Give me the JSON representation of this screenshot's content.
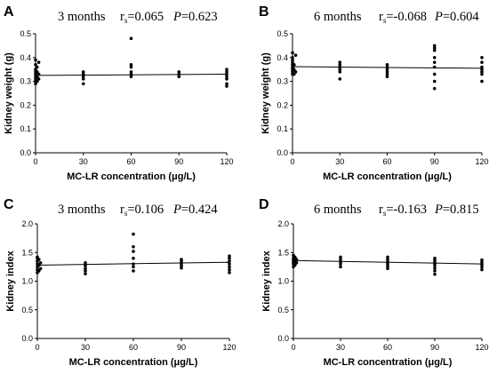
{
  "chart_data": [
    {
      "type": "scatter",
      "panel": "A",
      "title": "3 months",
      "rs_label": "r",
      "rs_sub": "s",
      "rs_value": "=0.065",
      "p_label": "P",
      "p_value": "=0.623",
      "xlabel": "MC-LR concentration (μg/L)",
      "ylabel": "Kidney weight (g)",
      "xticks": [
        0,
        30,
        60,
        90,
        120
      ],
      "yticks": [
        "0.0",
        "0.1",
        "0.2",
        "0.3",
        "0.4",
        "0.5"
      ],
      "xlim": [
        0,
        120
      ],
      "ylim": [
        0,
        0.5
      ],
      "points": [
        [
          0,
          0.29
        ],
        [
          0,
          0.3
        ],
        [
          0,
          0.31
        ],
        [
          0,
          0.32
        ],
        [
          0,
          0.33
        ],
        [
          0,
          0.34
        ],
        [
          0,
          0.35
        ],
        [
          0,
          0.37
        ],
        [
          0,
          0.39
        ],
        [
          1,
          0.3
        ],
        [
          1,
          0.32
        ],
        [
          1,
          0.34
        ],
        [
          1,
          0.36
        ],
        [
          2,
          0.31
        ],
        [
          2,
          0.33
        ],
        [
          2,
          0.38
        ],
        [
          30,
          0.29
        ],
        [
          30,
          0.31
        ],
        [
          30,
          0.32
        ],
        [
          30,
          0.33
        ],
        [
          30,
          0.34
        ],
        [
          60,
          0.32
        ],
        [
          60,
          0.33
        ],
        [
          60,
          0.34
        ],
        [
          60,
          0.36
        ],
        [
          60,
          0.37
        ],
        [
          60,
          0.48
        ],
        [
          90,
          0.32
        ],
        [
          90,
          0.33
        ],
        [
          90,
          0.34
        ],
        [
          120,
          0.28
        ],
        [
          120,
          0.29
        ],
        [
          120,
          0.31
        ],
        [
          120,
          0.32
        ],
        [
          120,
          0.33
        ],
        [
          120,
          0.34
        ],
        [
          120,
          0.35
        ]
      ],
      "trend": [
        [
          0,
          0.325
        ],
        [
          120,
          0.33
        ]
      ]
    },
    {
      "type": "scatter",
      "panel": "B",
      "title": "6 months",
      "rs_label": "r",
      "rs_sub": "s",
      "rs_value": "=-0.068",
      "p_label": "P",
      "p_value": "=0.604",
      "xlabel": "MC-LR concentration (μg/L)",
      "ylabel": "Kidney weight (g)",
      "xticks": [
        0,
        30,
        60,
        90,
        120
      ],
      "yticks": [
        "0.0",
        "0.1",
        "0.2",
        "0.3",
        "0.4",
        "0.5"
      ],
      "xlim": [
        0,
        120
      ],
      "ylim": [
        0,
        0.5
      ],
      "points": [
        [
          0,
          0.33
        ],
        [
          0,
          0.34
        ],
        [
          0,
          0.35
        ],
        [
          0,
          0.36
        ],
        [
          0,
          0.37
        ],
        [
          0,
          0.38
        ],
        [
          0,
          0.39
        ],
        [
          0,
          0.4
        ],
        [
          0,
          0.42
        ],
        [
          1,
          0.33
        ],
        [
          1,
          0.35
        ],
        [
          1,
          0.37
        ],
        [
          2,
          0.34
        ],
        [
          2,
          0.41
        ],
        [
          30,
          0.31
        ],
        [
          30,
          0.34
        ],
        [
          30,
          0.35
        ],
        [
          30,
          0.36
        ],
        [
          30,
          0.37
        ],
        [
          30,
          0.38
        ],
        [
          60,
          0.32
        ],
        [
          60,
          0.33
        ],
        [
          60,
          0.34
        ],
        [
          60,
          0.35
        ],
        [
          60,
          0.36
        ],
        [
          60,
          0.37
        ],
        [
          90,
          0.27
        ],
        [
          90,
          0.3
        ],
        [
          90,
          0.33
        ],
        [
          90,
          0.36
        ],
        [
          90,
          0.38
        ],
        [
          90,
          0.4
        ],
        [
          90,
          0.43
        ],
        [
          90,
          0.44
        ],
        [
          90,
          0.45
        ],
        [
          120,
          0.3
        ],
        [
          120,
          0.33
        ],
        [
          120,
          0.34
        ],
        [
          120,
          0.35
        ],
        [
          120,
          0.36
        ],
        [
          120,
          0.38
        ],
        [
          120,
          0.4
        ]
      ],
      "trend": [
        [
          0,
          0.362
        ],
        [
          120,
          0.355
        ]
      ]
    },
    {
      "type": "scatter",
      "panel": "C",
      "title": "3 months",
      "rs_label": "r",
      "rs_sub": "s",
      "rs_value": "=0.106",
      "p_label": "P",
      "p_value": "=0.424",
      "xlabel": "MC-LR concentration (μg/L)",
      "ylabel": "Kidney index",
      "xticks": [
        0,
        30,
        60,
        90,
        120
      ],
      "yticks": [
        "0.0",
        "0.5",
        "1.0",
        "1.5",
        "2.0"
      ],
      "xlim": [
        0,
        120
      ],
      "ylim": [
        0,
        2.0
      ],
      "points": [
        [
          0,
          1.15
        ],
        [
          0,
          1.2
        ],
        [
          0,
          1.25
        ],
        [
          0,
          1.3
        ],
        [
          0,
          1.35
        ],
        [
          0,
          1.4
        ],
        [
          0,
          1.42
        ],
        [
          1,
          1.18
        ],
        [
          1,
          1.28
        ],
        [
          1,
          1.38
        ],
        [
          2,
          1.22
        ],
        [
          2,
          1.32
        ],
        [
          30,
          1.13
        ],
        [
          30,
          1.18
        ],
        [
          30,
          1.22
        ],
        [
          30,
          1.27
        ],
        [
          30,
          1.32
        ],
        [
          60,
          1.18
        ],
        [
          60,
          1.25
        ],
        [
          60,
          1.3
        ],
        [
          60,
          1.4
        ],
        [
          60,
          1.52
        ],
        [
          60,
          1.6
        ],
        [
          60,
          1.82
        ],
        [
          90,
          1.23
        ],
        [
          90,
          1.27
        ],
        [
          90,
          1.31
        ],
        [
          90,
          1.35
        ],
        [
          90,
          1.38
        ],
        [
          120,
          1.15
        ],
        [
          120,
          1.2
        ],
        [
          120,
          1.25
        ],
        [
          120,
          1.3
        ],
        [
          120,
          1.35
        ],
        [
          120,
          1.4
        ],
        [
          120,
          1.44
        ]
      ],
      "trend": [
        [
          0,
          1.28
        ],
        [
          120,
          1.33
        ]
      ]
    },
    {
      "type": "scatter",
      "panel": "D",
      "title": "6 months",
      "rs_label": "r",
      "rs_sub": "s",
      "rs_value": "=-0.163",
      "p_label": "P",
      "p_value": "=0.815",
      "xlabel": "MC-LR concentration (μg/L)",
      "ylabel": "Kidney index",
      "xticks": [
        0,
        30,
        60,
        90,
        120
      ],
      "yticks": [
        "0.0",
        "0.5",
        "1.0",
        "1.5",
        "2.0"
      ],
      "xlim": [
        0,
        120
      ],
      "ylim": [
        0,
        2.0
      ],
      "points": [
        [
          0,
          1.25
        ],
        [
          0,
          1.3
        ],
        [
          0,
          1.33
        ],
        [
          0,
          1.36
        ],
        [
          0,
          1.4
        ],
        [
          0,
          1.45
        ],
        [
          1,
          1.28
        ],
        [
          1,
          1.35
        ],
        [
          1,
          1.42
        ],
        [
          2,
          1.32
        ],
        [
          2,
          1.38
        ],
        [
          30,
          1.25
        ],
        [
          30,
          1.3
        ],
        [
          30,
          1.34
        ],
        [
          30,
          1.38
        ],
        [
          30,
          1.42
        ],
        [
          60,
          1.22
        ],
        [
          60,
          1.26
        ],
        [
          60,
          1.3
        ],
        [
          60,
          1.34
        ],
        [
          60,
          1.38
        ],
        [
          60,
          1.42
        ],
        [
          90,
          1.12
        ],
        [
          90,
          1.18
        ],
        [
          90,
          1.23
        ],
        [
          90,
          1.28
        ],
        [
          90,
          1.32
        ],
        [
          90,
          1.36
        ],
        [
          90,
          1.4
        ],
        [
          120,
          1.2
        ],
        [
          120,
          1.25
        ],
        [
          120,
          1.29
        ],
        [
          120,
          1.33
        ],
        [
          120,
          1.37
        ]
      ],
      "trend": [
        [
          0,
          1.36
        ],
        [
          120,
          1.3
        ]
      ]
    }
  ]
}
